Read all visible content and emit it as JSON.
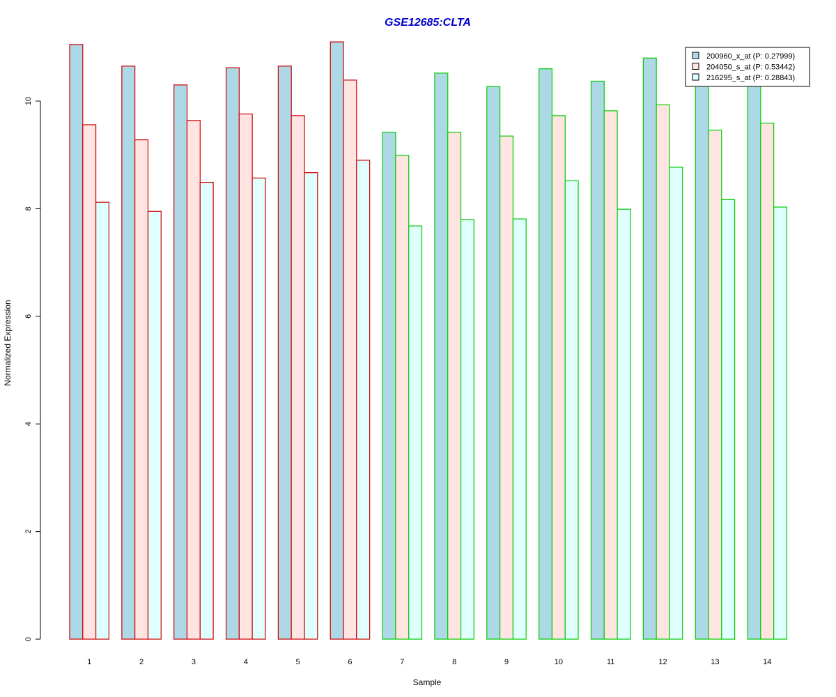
{
  "chart_data": {
    "type": "bar",
    "title": "GSE12685:CLTA",
    "title_color": "#0000CC",
    "xlabel": "Sample",
    "ylabel": "Normalized Expression",
    "ylim": [
      0,
      11.2
    ],
    "yticks": [
      0,
      2,
      4,
      6,
      8,
      10
    ],
    "grid": false,
    "legend_position": "top-right",
    "categories": [
      "1",
      "2",
      "3",
      "4",
      "5",
      "6",
      "7",
      "8",
      "9",
      "10",
      "11",
      "12",
      "13",
      "14"
    ],
    "group_border_colors": [
      "#CC0000",
      "#CC0000",
      "#CC0000",
      "#CC0000",
      "#CC0000",
      "#CC0000",
      "#00CC00",
      "#00CC00",
      "#00CC00",
      "#00CC00",
      "#00CC00",
      "#00CC00",
      "#00CC00",
      "#00CC00"
    ],
    "series": [
      {
        "name": "200960_x_at (P: 0.27999)",
        "color": "#ADD8E6",
        "values": [
          11.05,
          10.65,
          10.3,
          10.62,
          10.65,
          11.1,
          9.42,
          10.52,
          10.27,
          10.6,
          10.37,
          10.8,
          10.4,
          10.45
        ]
      },
      {
        "name": "204050_s_at (P: 0.53442)",
        "color": "#FFE4E1",
        "values": [
          9.56,
          9.28,
          9.64,
          9.76,
          9.73,
          10.39,
          8.99,
          9.42,
          9.35,
          9.73,
          9.82,
          9.93,
          9.46,
          9.59
        ]
      },
      {
        "name": "216295_s_at (P: 0.28843)",
        "color": "#E0FFFF",
        "values": [
          8.12,
          7.95,
          8.49,
          8.57,
          8.67,
          8.9,
          7.68,
          7.8,
          7.81,
          8.52,
          7.99,
          8.77,
          8.17,
          8.03
        ]
      }
    ]
  }
}
